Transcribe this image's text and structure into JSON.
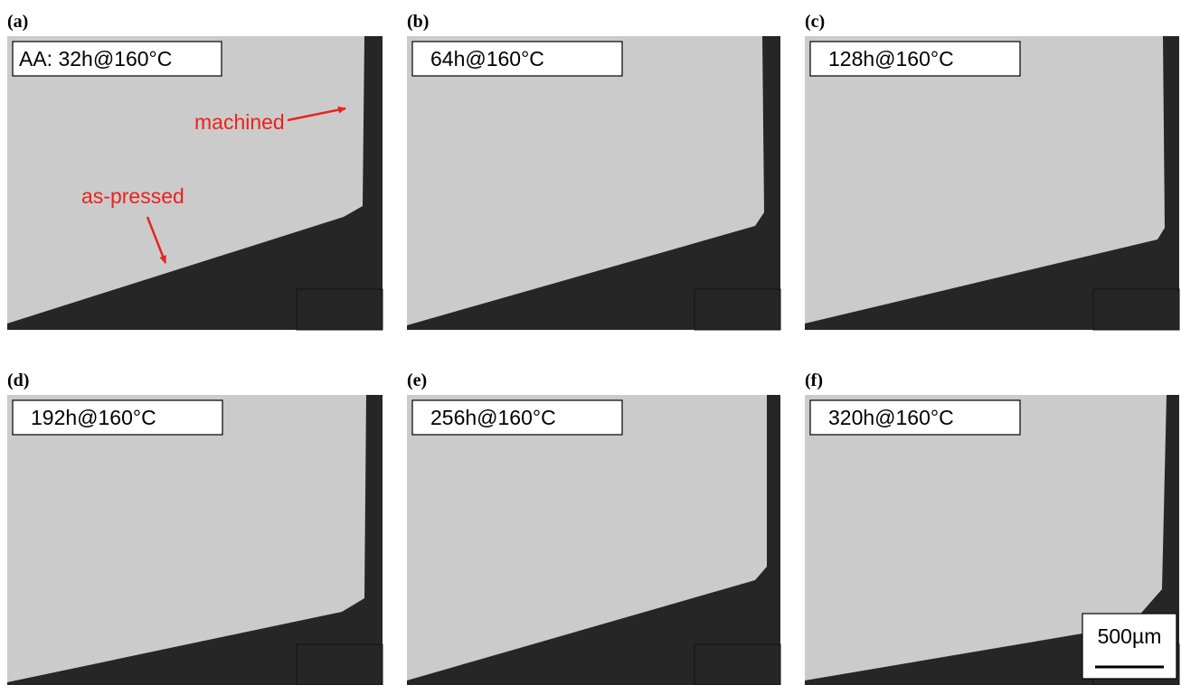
{
  "panels": [
    {
      "label": "(a)",
      "caption": "AA: 32h@160°C"
    },
    {
      "label": "(b)",
      "caption": "64h@160°C"
    },
    {
      "label": "(c)",
      "caption": "128h@160°C"
    },
    {
      "label": "(d)",
      "caption": "192h@160°C"
    },
    {
      "label": "(e)",
      "caption": "256h@160°C"
    },
    {
      "label": "(f)",
      "caption": "320h@160°C"
    }
  ],
  "annotations": {
    "machined": "machined",
    "as_pressed": "as-pressed"
  },
  "scale_bar": "500µm"
}
